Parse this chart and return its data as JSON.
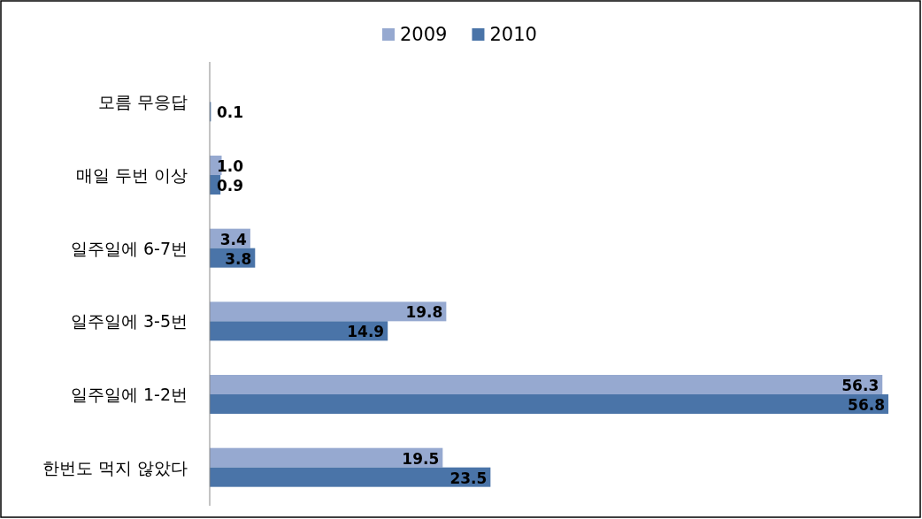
{
  "chart_data": {
    "type": "bar",
    "orientation": "horizontal",
    "categories": [
      "모름 무응답",
      "매일 두번 이상",
      "일주일에 6-7번",
      "일주일에 3-5번",
      "일주일에 1-2번",
      "한번도 먹지 않았다"
    ],
    "series": [
      {
        "name": "2009",
        "color": "#96a9d0",
        "values": [
          null,
          1.0,
          3.4,
          19.8,
          56.3,
          19.5
        ],
        "value_labels": [
          null,
          "1.0",
          "3.4",
          "19.8",
          "56.3",
          "19.5"
        ]
      },
      {
        "name": "2010",
        "color": "#4a74a8",
        "values": [
          0.1,
          0.9,
          3.8,
          14.9,
          56.8,
          23.5
        ],
        "value_labels": [
          "0.1",
          "0.9",
          "3.8",
          "14.9",
          "56.8",
          "23.5"
        ]
      }
    ],
    "legend": "top"
  }
}
